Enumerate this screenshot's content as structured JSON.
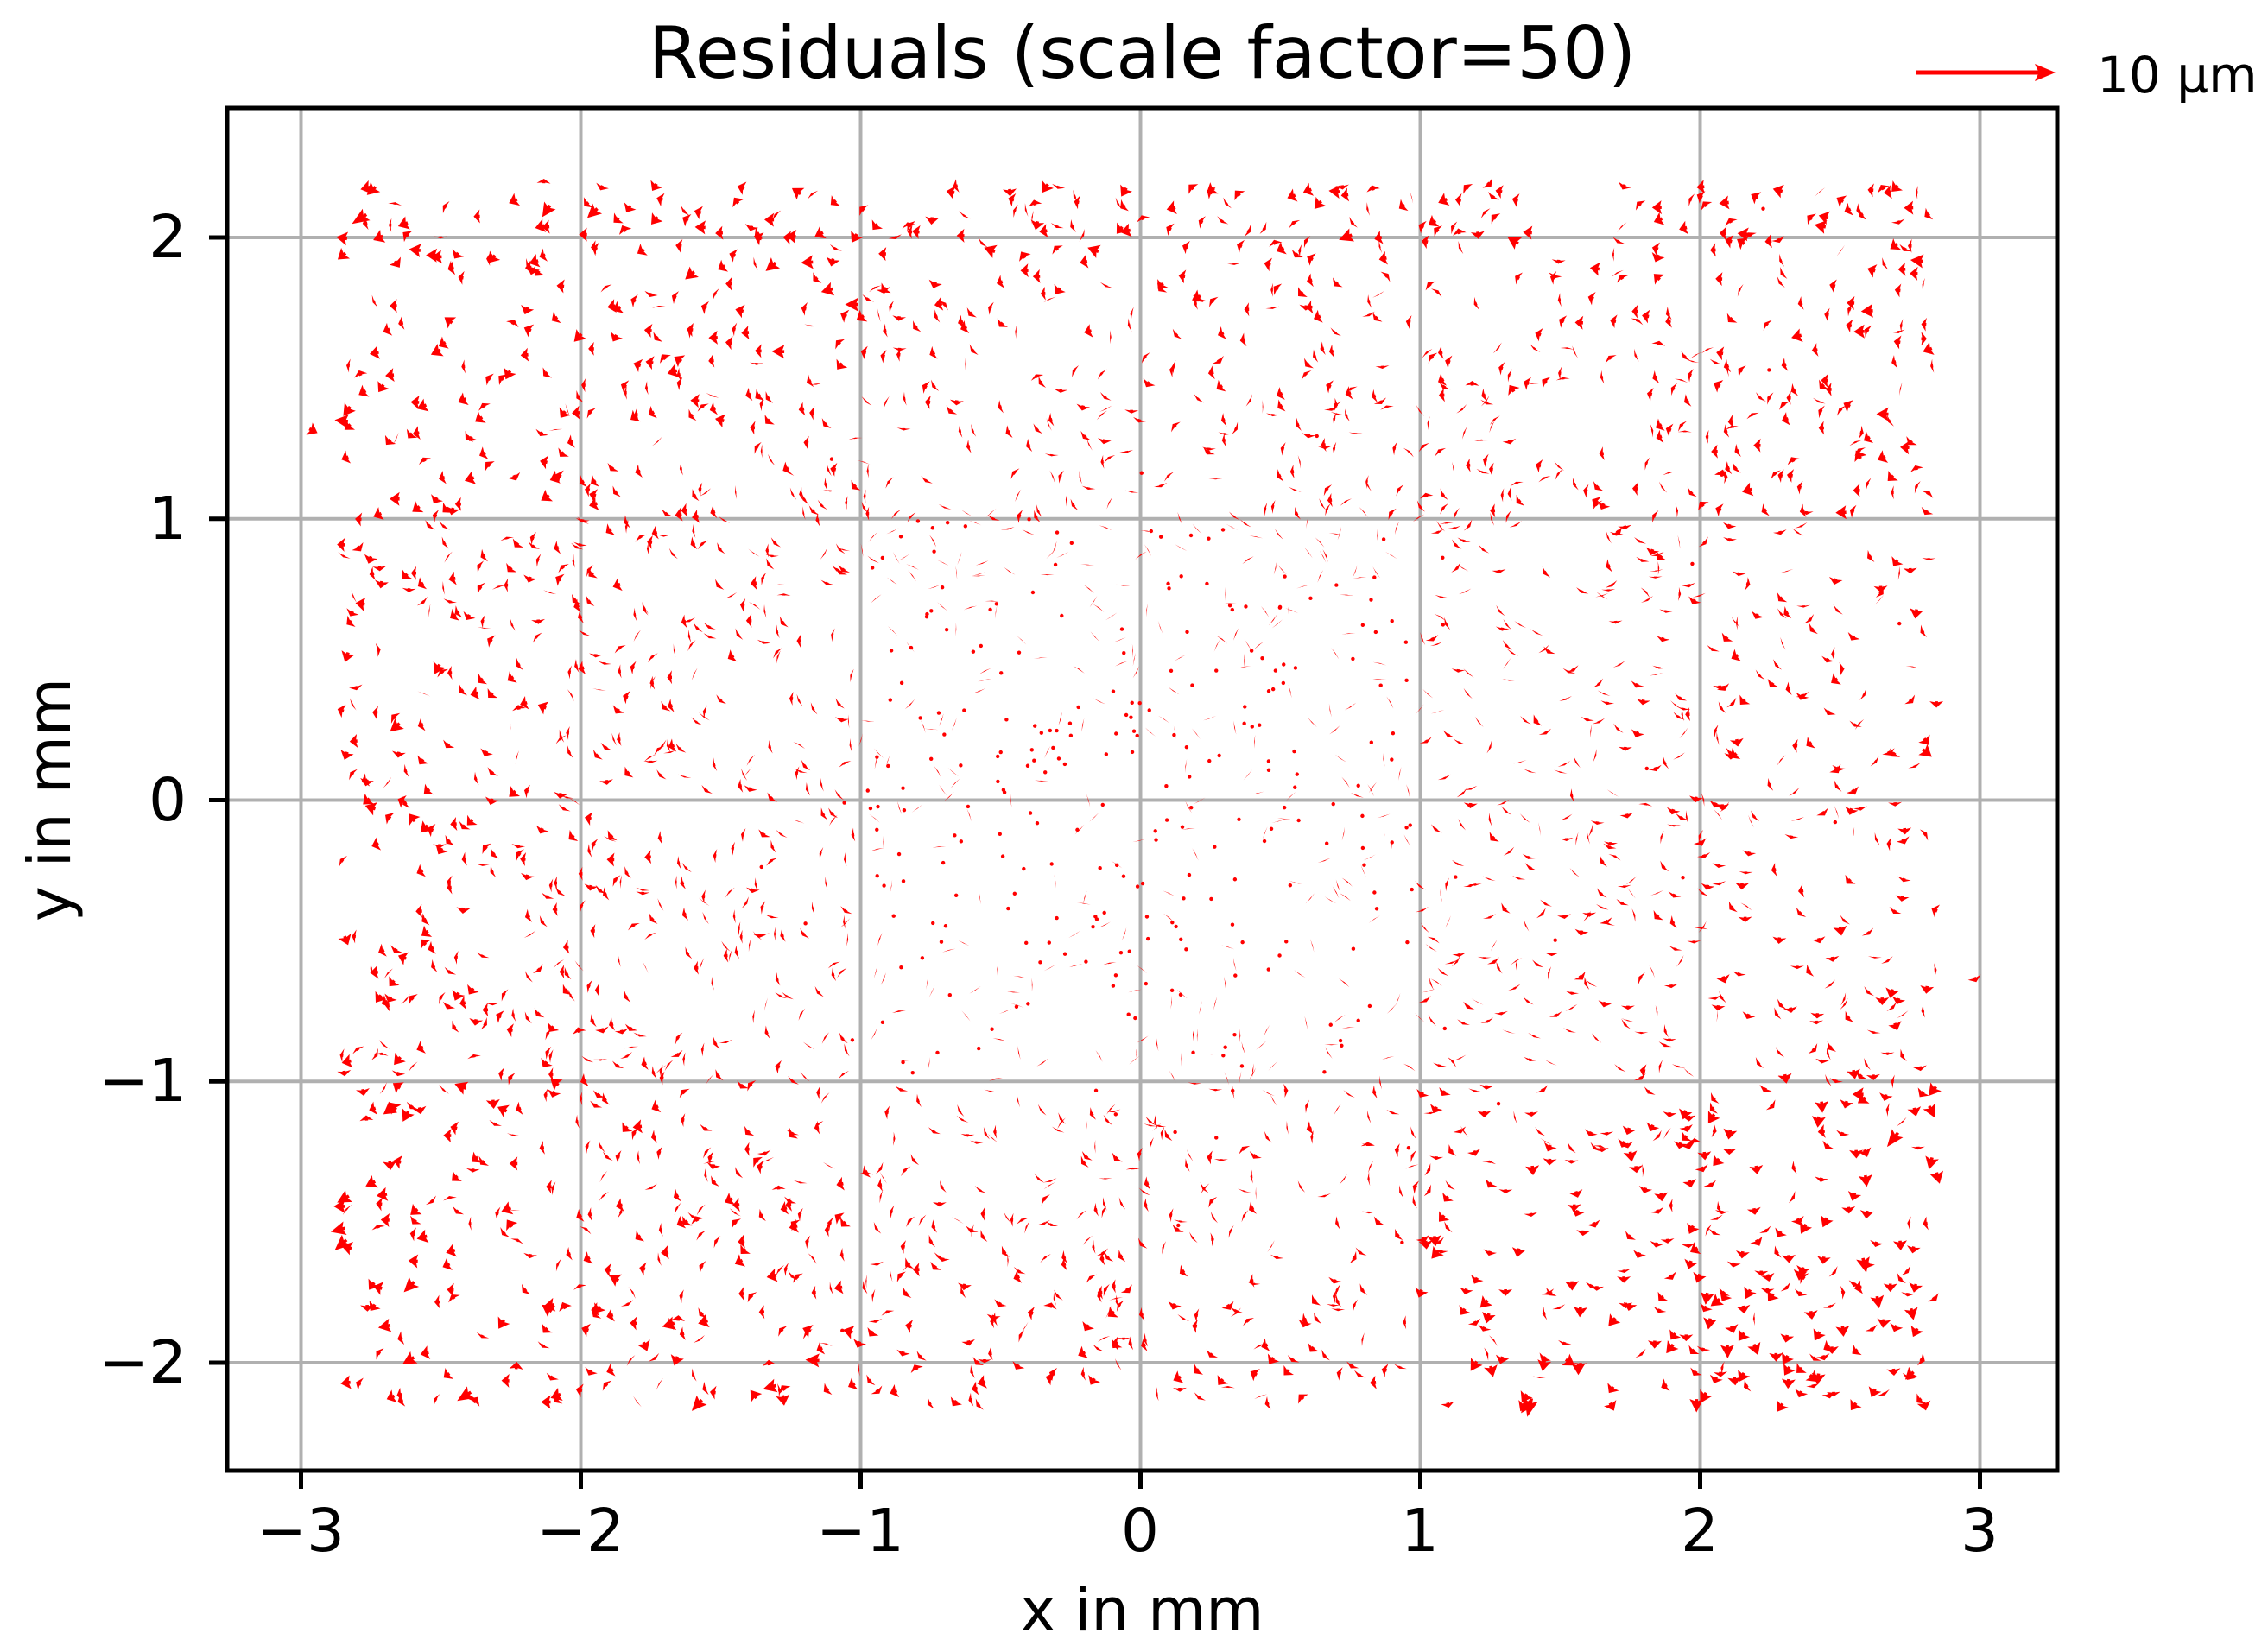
{
  "chart_data": {
    "type": "quiver",
    "title": "Residuals (scale factor=50)",
    "xlabel": "x in mm",
    "ylabel": "y in mm",
    "xlim": [
      -3.27,
      3.27
    ],
    "ylim": [
      -2.39,
      2.46
    ],
    "xticks": [
      -3,
      -2,
      -1,
      0,
      1,
      2,
      3
    ],
    "xtick_labels": [
      "−3",
      "−2",
      "−1",
      "0",
      "1",
      "2",
      "3"
    ],
    "yticks": [
      -2,
      -1,
      0,
      1,
      2
    ],
    "ytick_labels": [
      "−2",
      "−1",
      "0",
      "1",
      "2"
    ],
    "grid": true,
    "color": "#ff0000",
    "grid_color": "#b0b0b0",
    "scale_factor": 50,
    "quiver_key": {
      "label": "10 µm",
      "length_um": 10,
      "length_mm_on_plot": 0.5
    },
    "field": {
      "description": "Dense quiver field of residual vectors on a roughly rectangular sampling area; small magnitudes near center, larger near edges",
      "x_range": [
        -2.85,
        2.85
      ],
      "y_range": [
        -2.15,
        2.2
      ],
      "approx_point_count": 3000,
      "regional_mean_residual_um": [
        {
          "region": "top-left (x<-1, y>1)",
          "dx": -2.2,
          "dy": -0.8,
          "spread": 2.2
        },
        {
          "region": "top-middle (-1<x<1, y>1)",
          "dx": -1.2,
          "dy": -0.4,
          "spread": 1.8
        },
        {
          "region": "top-right (x>1, y>1)",
          "dx": -1.6,
          "dy": 0.2,
          "spread": 2.0
        },
        {
          "region": "middle-left (x<-1, -1<y<1)",
          "dx": -1.4,
          "dy": -0.6,
          "spread": 1.8
        },
        {
          "region": "center (-1<x<1, -1<y<1)",
          "dx": 0.0,
          "dy": 0.0,
          "spread": 0.7
        },
        {
          "region": "middle-right (x>1, -1<y<1)",
          "dx": -0.3,
          "dy": -1.2,
          "spread": 1.6
        },
        {
          "region": "bottom-left (x<-1, y<-1)",
          "dx": -1.8,
          "dy": -0.4,
          "spread": 2.4
        },
        {
          "region": "bottom-middle (-1<x<1, y<-1)",
          "dx": -1.0,
          "dy": -0.5,
          "spread": 1.6
        },
        {
          "region": "bottom-right (x>1, y<-1)",
          "dx": -0.5,
          "dy": -2.4,
          "spread": 2.2
        }
      ],
      "notable_vectors": [
        {
          "x": -2.97,
          "y": 1.32,
          "u_um": 2.9,
          "v_um": -1.5
        },
        {
          "x": 2.79,
          "y": 1.64,
          "u_um": 2.0,
          "v_um": 0.0
        },
        {
          "x": 2.98,
          "y": -0.63,
          "u_um": 0.7,
          "v_um": -1.7
        },
        {
          "x": -0.52,
          "y": 1.95,
          "u_um": -3.9,
          "v_um": 1.4
        },
        {
          "x": -0.15,
          "y": 1.95,
          "u_um": -3.9,
          "v_um": 1.4
        },
        {
          "x": -1.05,
          "y": 1.72,
          "u_um": -2.2,
          "v_um": 0.9
        },
        {
          "x": -1.55,
          "y": 1.75,
          "u_um": -2.0,
          "v_um": 0.7
        },
        {
          "x": -2.25,
          "y": -1.45,
          "u_um": -3.4,
          "v_um": -1.3
        },
        {
          "x": -2.45,
          "y": -1.6,
          "u_um": -3.2,
          "v_um": -0.9
        },
        {
          "x": -2.55,
          "y": -1.55,
          "u_um": -3.6,
          "v_um": -1.0
        },
        {
          "x": 1.05,
          "y": -1.55,
          "u_um": 0.5,
          "v_um": -3.6
        },
        {
          "x": 1.4,
          "y": -1.3,
          "u_um": 0.3,
          "v_um": -3.4
        },
        {
          "x": 1.75,
          "y": -1.25,
          "u_um": 0.6,
          "v_um": -3.6
        },
        {
          "x": 2.2,
          "y": -1.3,
          "u_um": 0.4,
          "v_um": -3.0
        },
        {
          "x": 2.5,
          "y": -0.45,
          "u_um": 0.5,
          "v_um": -3.2
        },
        {
          "x": 1.95,
          "y": -1.9,
          "u_um": 0.0,
          "v_um": -2.4
        }
      ]
    }
  }
}
